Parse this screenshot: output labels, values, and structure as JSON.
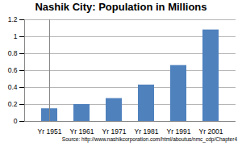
{
  "chart_data": {
    "type": "bar",
    "title": "Nashik City: Population in Millions",
    "categories": [
      "Yr 1951",
      "Yr 1961",
      "Yr 1971",
      "Yr 1981",
      "Yr 1991",
      "Yr 2001"
    ],
    "values": [
      0.15,
      0.2,
      0.27,
      0.43,
      0.66,
      1.08
    ],
    "color": "#4f81bd",
    "ylim": [
      0,
      1.2
    ],
    "yticks": [
      0,
      0.2,
      0.4,
      0.6,
      0.8,
      1,
      1.2
    ],
    "grid": true,
    "annotation": "Source: http://www.nashikcorporation.com/html/aboutus/nmc_cdp/Chapter4"
  }
}
